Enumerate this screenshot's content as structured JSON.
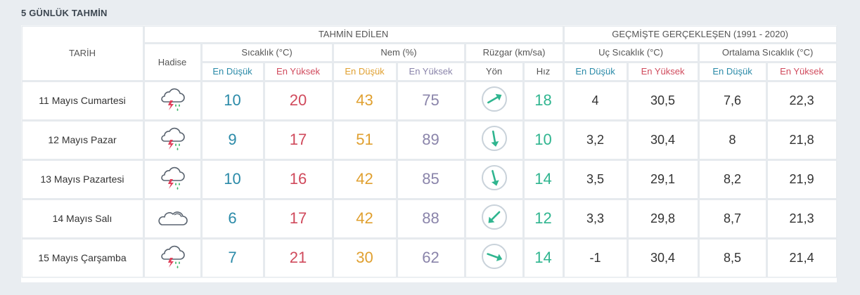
{
  "title": "5 GÜNLÜK TAHMİN",
  "headers": {
    "tarih": "TARİH",
    "forecast_group": "TAHMİN EDİLEN",
    "history_group": "GEÇMİŞTE GERÇEKLEŞEN (1991 - 2020)",
    "hadise": "Hadise",
    "sicaklik": "Sıcaklık (°C)",
    "nem": "Nem (%)",
    "ruzgar": "Rüzgar (km/sa)",
    "uc_sicaklik": "Uç Sıcaklık (°C)",
    "ortalama_sicaklik": "Ortalama Sıcaklık (°C)",
    "en_dusuk": "En Düşük",
    "en_yuksek": "En Yüksek",
    "yon": "Yön",
    "hiz": "Hız"
  },
  "colors": {
    "low": "#2a8aa8",
    "high": "#d04a5c",
    "humidity_low": "#e0a030",
    "humidity_high": "#8a84aa",
    "wind": "#2fb58f"
  },
  "rows": [
    {
      "date": "11 Mayıs Cumartesi",
      "icon": "thunderstorm-rain-icon",
      "temp_low": "10",
      "temp_high": "20",
      "hum_low": "43",
      "hum_high": "75",
      "wind_dir_deg": 60,
      "wind_speed": "18",
      "ext_low": "4",
      "ext_high": "30,5",
      "avg_low": "7,6",
      "avg_high": "22,3"
    },
    {
      "date": "12 Mayıs Pazar",
      "icon": "thunderstorm-rain-icon",
      "temp_low": "9",
      "temp_high": "17",
      "hum_low": "51",
      "hum_high": "89",
      "wind_dir_deg": 170,
      "wind_speed": "10",
      "ext_low": "3,2",
      "ext_high": "30,4",
      "avg_low": "8",
      "avg_high": "21,8"
    },
    {
      "date": "13 Mayıs Pazartesi",
      "icon": "thunderstorm-rain-icon",
      "temp_low": "10",
      "temp_high": "16",
      "hum_low": "42",
      "hum_high": "85",
      "wind_dir_deg": 165,
      "wind_speed": "14",
      "ext_low": "3,5",
      "ext_high": "29,1",
      "avg_low": "8,2",
      "avg_high": "21,9"
    },
    {
      "date": "14 Mayıs Salı",
      "icon": "cloud-icon",
      "temp_low": "6",
      "temp_high": "17",
      "hum_low": "42",
      "hum_high": "88",
      "wind_dir_deg": 225,
      "wind_speed": "12",
      "ext_low": "3,3",
      "ext_high": "29,8",
      "avg_low": "8,7",
      "avg_high": "21,3"
    },
    {
      "date": "15 Mayıs Çarşamba",
      "icon": "thunderstorm-rain-icon",
      "temp_low": "7",
      "temp_high": "21",
      "hum_low": "30",
      "hum_high": "62",
      "wind_dir_deg": 110,
      "wind_speed": "14",
      "ext_low": "-1",
      "ext_high": "30,4",
      "avg_low": "8,5",
      "avg_high": "21,4"
    }
  ]
}
